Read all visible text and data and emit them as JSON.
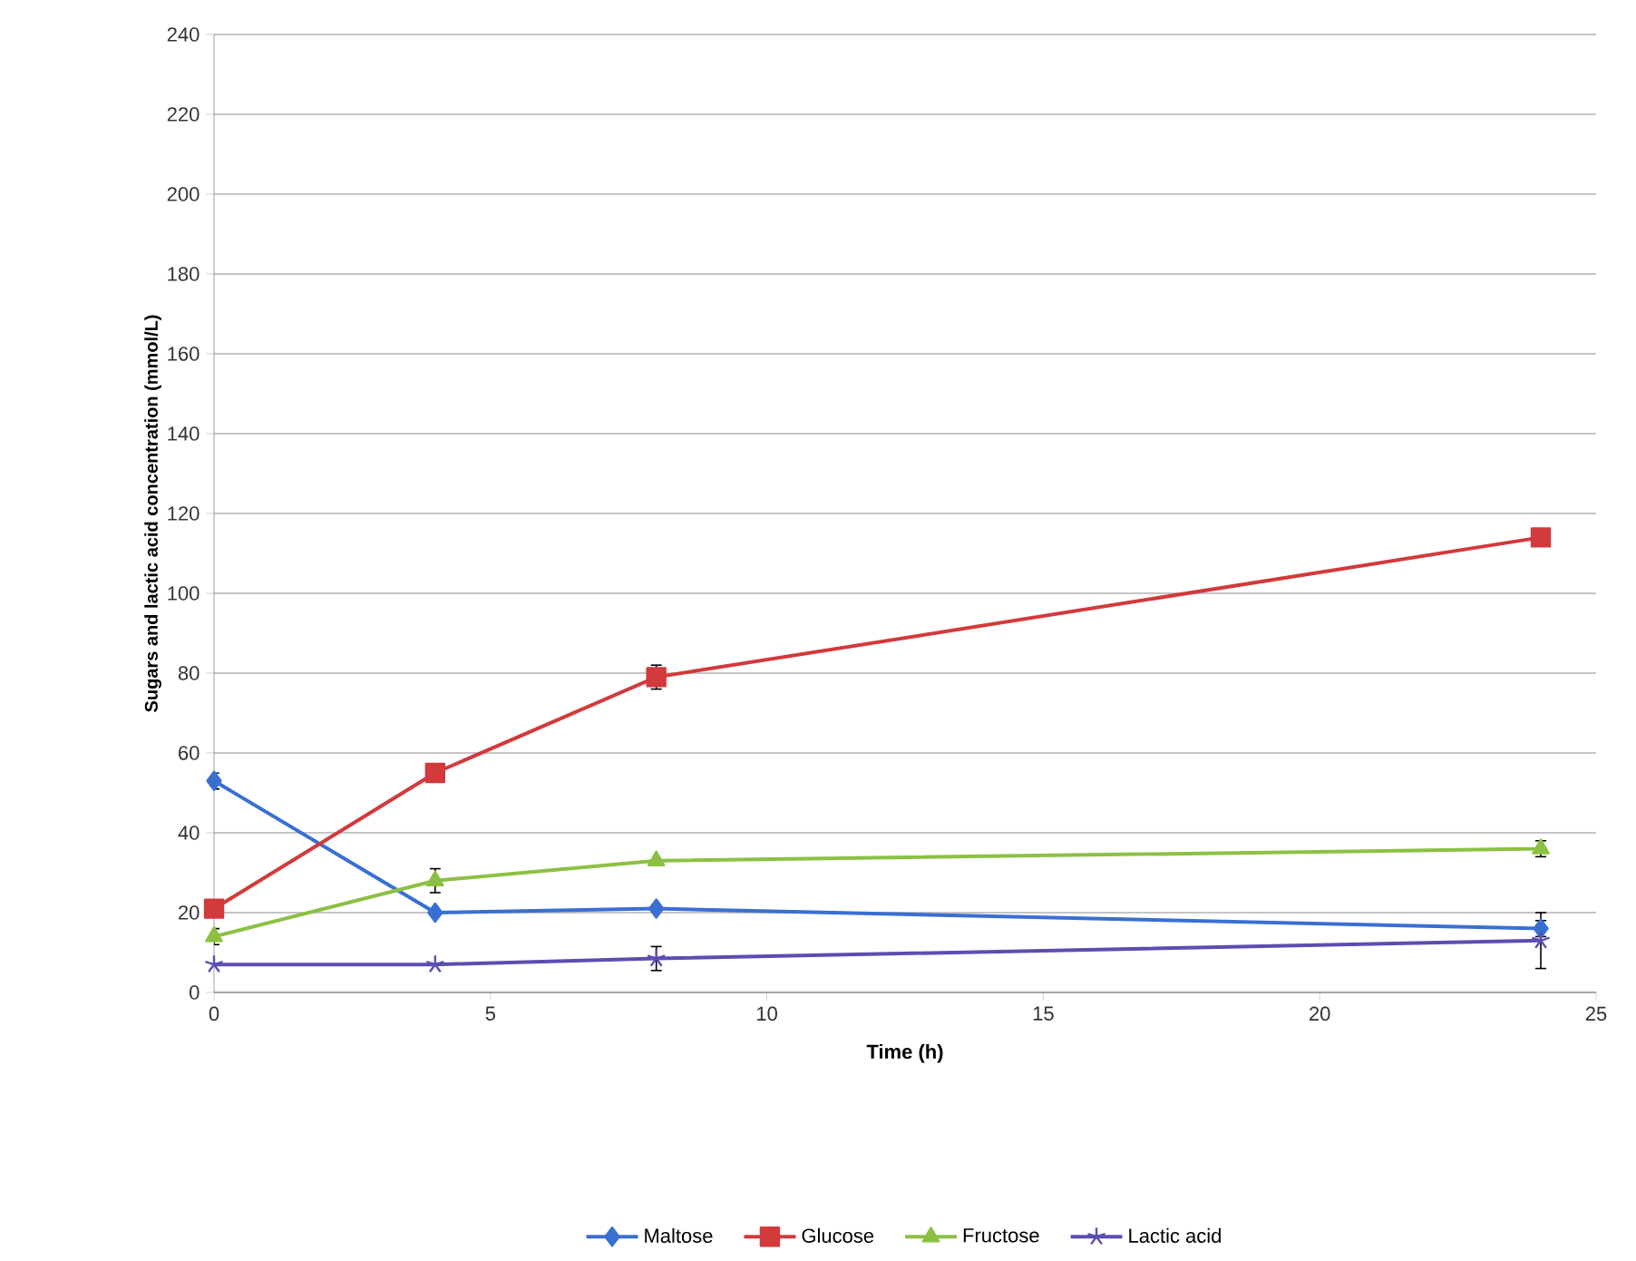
{
  "chart_data": {
    "type": "line",
    "xlabel": "Time (h)",
    "ylabel": "Sugars and lactic acid concentration (mmol/L)",
    "x": [
      0,
      4,
      8,
      24
    ],
    "series": [
      {
        "name": "Maltose",
        "color": "#3a6fd2",
        "marker": "diamond",
        "values": [
          53,
          20,
          21,
          16
        ],
        "errors": [
          2,
          null,
          null,
          2
        ]
      },
      {
        "name": "Glucose",
        "color": "#d23a3c",
        "marker": "square",
        "values": [
          21,
          55,
          79,
          114
        ],
        "errors": [
          null,
          null,
          3,
          null
        ]
      },
      {
        "name": "Fructose",
        "color": "#8cc043",
        "marker": "triangle",
        "values": [
          14,
          28,
          33,
          36
        ],
        "errors": [
          2,
          3,
          null,
          2
        ]
      },
      {
        "name": "Lactic acid",
        "color": "#5a4fb0",
        "marker": "cross",
        "values": [
          7,
          7,
          8.5,
          13
        ],
        "errors": [
          null,
          null,
          3,
          7
        ]
      }
    ],
    "xlim": [
      0,
      25
    ],
    "xticks": [
      0,
      5,
      10,
      15,
      20,
      25
    ],
    "ylim": [
      0,
      240
    ],
    "yticks": [
      0,
      20,
      40,
      60,
      80,
      100,
      120,
      140,
      160,
      180,
      200,
      220,
      240
    ],
    "grid": "y",
    "legend": "bottom",
    "line_style": "solid"
  }
}
